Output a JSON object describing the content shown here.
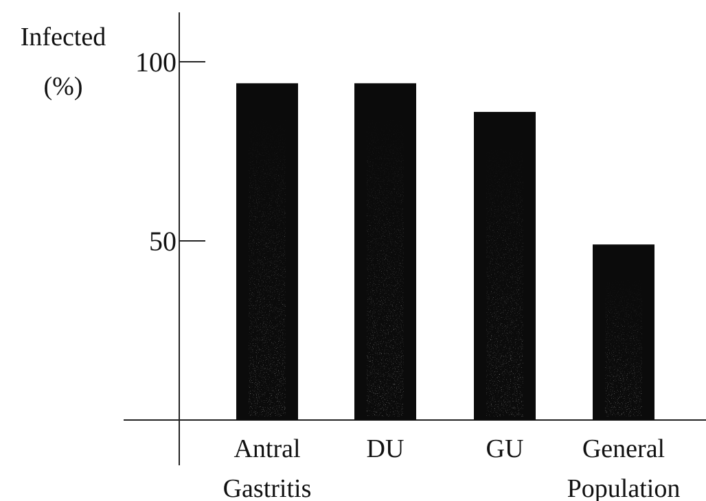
{
  "chart_data": {
    "type": "bar",
    "title": "",
    "ylabel_lines": [
      "Infected",
      "(%)"
    ],
    "xlabel": "",
    "categories": [
      [
        "Antral",
        "Gastritis"
      ],
      [
        "DU"
      ],
      [
        "GU"
      ],
      [
        "General",
        "Population"
      ]
    ],
    "values": [
      94,
      94,
      86,
      49
    ],
    "yticks": [
      50,
      100
    ],
    "ylim": [
      0,
      110
    ],
    "grid": false,
    "legend": "none",
    "colors": {
      "bar": "#0b0b0b",
      "axis": "#222222",
      "speckle": "#ffffff"
    }
  }
}
